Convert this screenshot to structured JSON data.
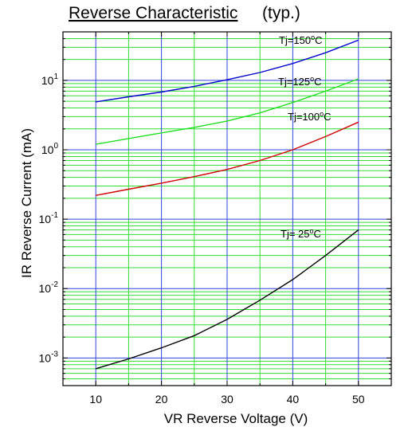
{
  "chart_data": {
    "type": "line",
    "title": "Reverse Characteristic",
    "subtitle": "(typ.)",
    "xlabel": "VR   Reverse Voltage   (V)",
    "ylabel": "IR   Reverse Current   (mA)",
    "xlim": [
      5,
      55
    ],
    "ylim": [
      0.0004,
      50
    ],
    "yscale": "log",
    "grid": true,
    "x_ticks": [
      "10",
      "20",
      "30",
      "40",
      "50"
    ],
    "y_ticks": [
      {
        "base": "10",
        "exp": "-3"
      },
      {
        "base": "10",
        "exp": "-2"
      },
      {
        "base": "10",
        "exp": "-1"
      },
      {
        "base": "10",
        "exp": "0"
      },
      {
        "base": "10",
        "exp": "1"
      }
    ],
    "series": [
      {
        "name": "Tj=150°C",
        "color": "#0000cc",
        "x": [
          10,
          15,
          20,
          25,
          30,
          35,
          40,
          45,
          50
        ],
        "y": [
          4.9,
          5.8,
          6.8,
          8.2,
          10.2,
          13,
          17.5,
          25,
          38
        ]
      },
      {
        "name": "Tj=125°C",
        "color": "#22dd22",
        "x": [
          10,
          15,
          20,
          25,
          30,
          35,
          40,
          45,
          50
        ],
        "y": [
          1.2,
          1.45,
          1.75,
          2.1,
          2.6,
          3.4,
          4.8,
          7,
          10.5
        ]
      },
      {
        "name": "Tj=100°C",
        "color": "#cc0000",
        "x": [
          10,
          15,
          20,
          25,
          30,
          35,
          40,
          45,
          50
        ],
        "y": [
          0.22,
          0.27,
          0.33,
          0.41,
          0.52,
          0.7,
          1.0,
          1.55,
          2.5
        ]
      },
      {
        "name": "Tj= 25°C",
        "color": "#000000",
        "x": [
          10,
          15,
          20,
          25,
          30,
          35,
          40,
          45,
          50
        ],
        "y": [
          0.0007,
          0.00097,
          0.0014,
          0.0021,
          0.0036,
          0.0068,
          0.0135,
          0.03,
          0.07
        ]
      }
    ]
  }
}
